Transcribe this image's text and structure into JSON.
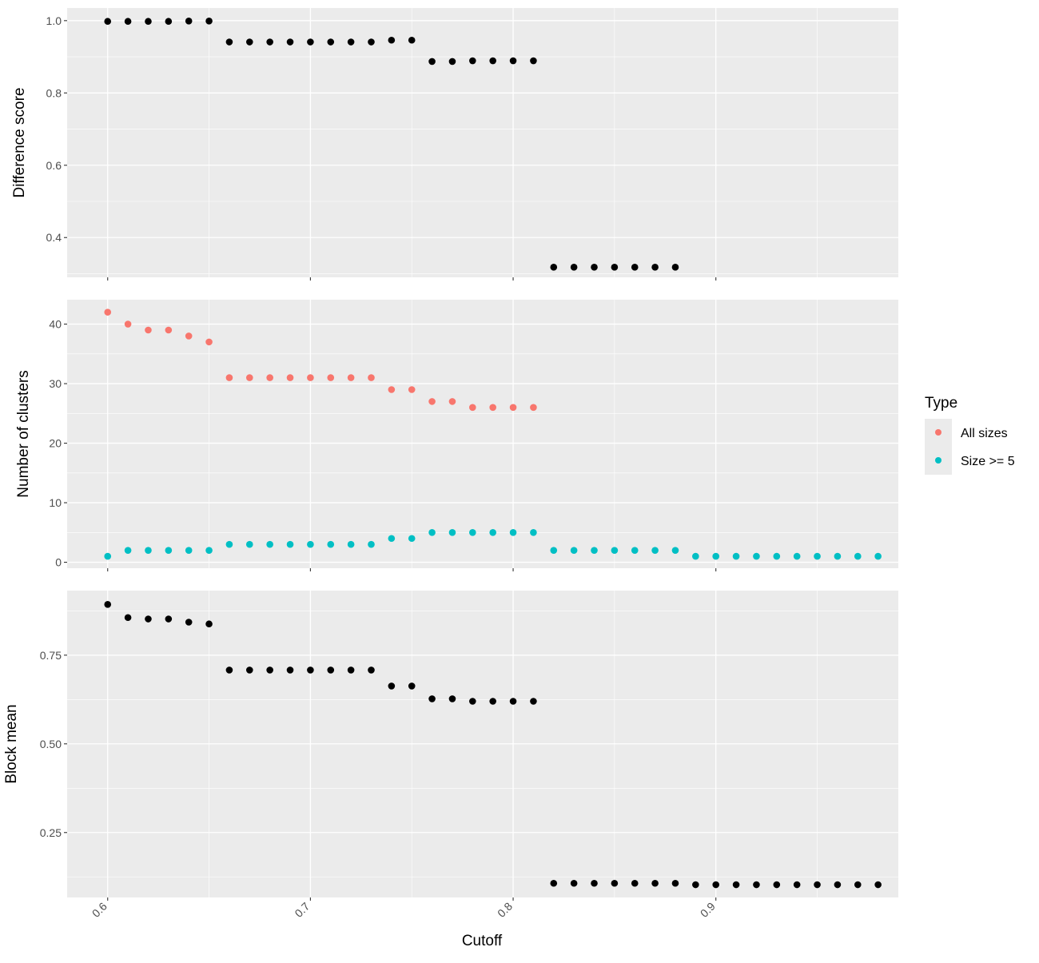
{
  "figure": {
    "xlabel": "Cutoff",
    "legend": {
      "title": "Type",
      "placement": "right"
    }
  },
  "colors": {
    "panel_background": "#ebebeb",
    "grid": "#ffffff",
    "tick_text": "#4d4d4d",
    "all_sizes": "#f8766d",
    "size_ge_5": "#00bfc4",
    "points": "#000000"
  },
  "chart_data": [
    {
      "type": "scatter",
      "ylabel": "Difference score",
      "xlim": [
        0.58,
        0.99
      ],
      "ylim": [
        0.29,
        1.035
      ],
      "x_ticks": [
        0.6,
        0.7,
        0.8,
        0.9
      ],
      "x_tick_labels": [],
      "y_ticks": [
        0.4,
        0.6,
        0.8,
        1.0
      ],
      "y_tick_labels": [
        "0.4",
        "0.6",
        "0.8",
        "1.0"
      ],
      "grid": true,
      "series": [
        {
          "color": "#000000",
          "x": [
            0.6,
            0.61,
            0.62,
            0.63,
            0.64,
            0.65,
            0.66,
            0.67,
            0.68,
            0.69,
            0.7,
            0.71,
            0.72,
            0.73,
            0.74,
            0.75,
            0.76,
            0.77,
            0.78,
            0.79,
            0.8,
            0.81,
            0.82,
            0.83,
            0.84,
            0.85,
            0.86,
            0.87,
            0.88
          ],
          "y": [
            0.998,
            0.998,
            0.998,
            0.998,
            0.999,
            0.999,
            0.941,
            0.941,
            0.941,
            0.941,
            0.941,
            0.941,
            0.941,
            0.941,
            0.946,
            0.946,
            0.887,
            0.887,
            0.889,
            0.889,
            0.889,
            0.889,
            0.318,
            0.318,
            0.318,
            0.318,
            0.318,
            0.318,
            0.318
          ]
        }
      ]
    },
    {
      "type": "scatter",
      "ylabel": "Number of clusters",
      "xlim": [
        0.58,
        0.99
      ],
      "ylim": [
        -1.0,
        44.1
      ],
      "x_ticks": [
        0.6,
        0.7,
        0.8,
        0.9
      ],
      "x_tick_labels": [],
      "y_ticks": [
        0,
        10,
        20,
        30,
        40
      ],
      "y_tick_labels": [
        "0",
        "10",
        "20",
        "30",
        "40"
      ],
      "grid": true,
      "series": [
        {
          "name": "All sizes",
          "color": "#f8766d",
          "x": [
            0.6,
            0.61,
            0.62,
            0.63,
            0.64,
            0.65,
            0.66,
            0.67,
            0.68,
            0.69,
            0.7,
            0.71,
            0.72,
            0.73,
            0.74,
            0.75,
            0.76,
            0.77,
            0.78,
            0.79,
            0.8,
            0.81
          ],
          "y": [
            42,
            40,
            39,
            39,
            38,
            37,
            31,
            31,
            31,
            31,
            31,
            31,
            31,
            31,
            29,
            29,
            27,
            27,
            26,
            26,
            26,
            26
          ]
        },
        {
          "name": "Size >= 5",
          "color": "#00bfc4",
          "x": [
            0.6,
            0.61,
            0.62,
            0.63,
            0.64,
            0.65,
            0.66,
            0.67,
            0.68,
            0.69,
            0.7,
            0.71,
            0.72,
            0.73,
            0.74,
            0.75,
            0.76,
            0.77,
            0.78,
            0.79,
            0.8,
            0.81,
            0.82,
            0.83,
            0.84,
            0.85,
            0.86,
            0.87,
            0.88,
            0.89,
            0.9,
            0.91,
            0.92,
            0.93,
            0.94,
            0.95,
            0.96,
            0.97,
            0.98
          ],
          "y": [
            1,
            2,
            2,
            2,
            2,
            2,
            3,
            3,
            3,
            3,
            3,
            3,
            3,
            3,
            4,
            4,
            5,
            5,
            5,
            5,
            5,
            5,
            2,
            2,
            2,
            2,
            2,
            2,
            2,
            1,
            1,
            1,
            1,
            1,
            1,
            1,
            1,
            1,
            1
          ]
        }
      ]
    },
    {
      "type": "scatter",
      "ylabel": "Block mean",
      "xlim": [
        0.58,
        0.99
      ],
      "ylim": [
        0.067,
        0.932
      ],
      "x_ticks": [
        0.6,
        0.7,
        0.8,
        0.9
      ],
      "x_tick_labels": [
        "0.6",
        "0.7",
        "0.8",
        "0.9"
      ],
      "y_ticks": [
        0.25,
        0.5,
        0.75
      ],
      "y_tick_labels": [
        "0.25",
        "0.50",
        "0.75"
      ],
      "grid": true,
      "series": [
        {
          "color": "#000000",
          "x": [
            0.6,
            0.61,
            0.62,
            0.63,
            0.64,
            0.65,
            0.66,
            0.67,
            0.68,
            0.69,
            0.7,
            0.71,
            0.72,
            0.73,
            0.74,
            0.75,
            0.76,
            0.77,
            0.78,
            0.79,
            0.8,
            0.81,
            0.82,
            0.83,
            0.84,
            0.85,
            0.86,
            0.87,
            0.88,
            0.89,
            0.9,
            0.91,
            0.92,
            0.93,
            0.94,
            0.95,
            0.96,
            0.97,
            0.98
          ],
          "y": [
            0.893,
            0.856,
            0.852,
            0.852,
            0.843,
            0.838,
            0.708,
            0.708,
            0.708,
            0.708,
            0.708,
            0.708,
            0.708,
            0.708,
            0.663,
            0.663,
            0.627,
            0.627,
            0.62,
            0.62,
            0.62,
            0.62,
            0.107,
            0.107,
            0.107,
            0.107,
            0.107,
            0.107,
            0.107,
            0.103,
            0.103,
            0.103,
            0.103,
            0.103,
            0.103,
            0.103,
            0.103,
            0.103,
            0.103
          ]
        }
      ]
    }
  ]
}
